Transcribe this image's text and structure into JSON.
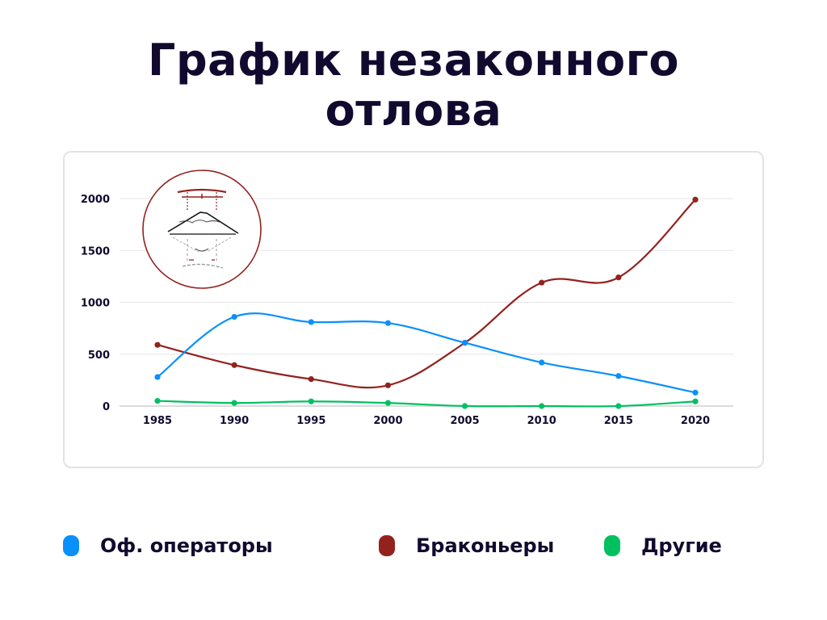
{
  "title": "График незаконного отлова",
  "legend": [
    {
      "label": "Оф. операторы",
      "color": "#0a90fb"
    },
    {
      "label": "Браконьеры",
      "color": "#93221e"
    },
    {
      "label": "Другие",
      "color": "#00c060"
    }
  ],
  "logo": {
    "icon": "torii-gate-mountain-emblem-icon",
    "border_color": "#93221e"
  },
  "chart_data": {
    "type": "line",
    "title": "График незаконного отлова",
    "xlabel": "",
    "ylabel": "",
    "x": [
      "1985",
      "1990",
      "1995",
      "2000",
      "2005",
      "2010",
      "2015",
      "2020"
    ],
    "y_ticks": [
      0,
      500,
      1000,
      1500,
      2000
    ],
    "ylim": [
      0,
      2000
    ],
    "grid": true,
    "legend_position": "bottom",
    "smooth": true,
    "series": [
      {
        "name": "Оф. операторы",
        "color": "#0a90fb",
        "values": [
          280,
          860,
          810,
          800,
          610,
          420,
          290,
          130
        ]
      },
      {
        "name": "Браконьеры",
        "color": "#93221e",
        "values": [
          590,
          395,
          260,
          200,
          610,
          1190,
          1240,
          1990
        ]
      },
      {
        "name": "Другие",
        "color": "#00c060",
        "values": [
          50,
          30,
          45,
          30,
          0,
          0,
          0,
          45
        ]
      }
    ]
  }
}
